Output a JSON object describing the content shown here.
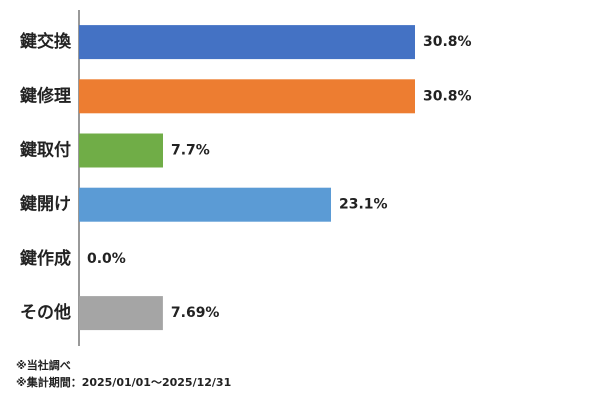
{
  "chart_data": {
    "type": "bar",
    "orientation": "horizontal",
    "categories": [
      "鍵交換",
      "鍵修理",
      "鍵取付",
      "鍵開け",
      "鍵作成",
      "その他"
    ],
    "values": [
      30.8,
      30.8,
      7.7,
      23.1,
      0.0,
      7.69
    ],
    "value_labels": [
      "30.8%",
      "30.8%",
      "7.7%",
      "23.1%",
      "0.0%",
      "7.69%"
    ],
    "colors": [
      "#4472c4",
      "#ed7d31",
      "#70ad47",
      "#5b9bd5",
      "#4472c4",
      "#a5a5a5"
    ],
    "notes": [
      "※当社調べ",
      "※集計期間：2025/01/01〜2025/12/31"
    ]
  }
}
